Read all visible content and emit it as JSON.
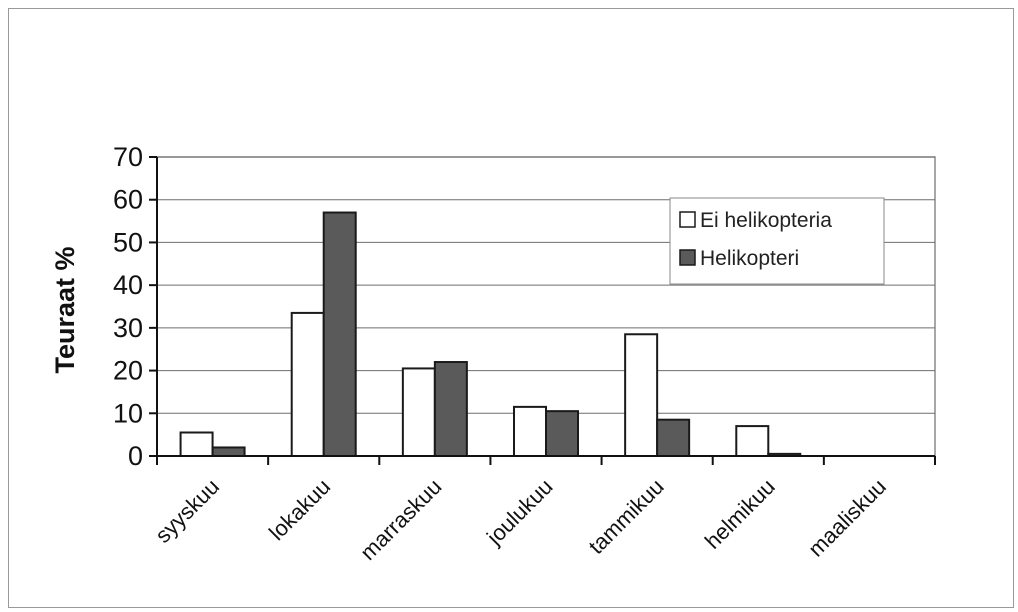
{
  "chart_data": {
    "type": "bar",
    "title": "",
    "xlabel": "",
    "ylabel": "Teuraat %",
    "ylim": [
      0,
      70
    ],
    "yticks": [
      0,
      10,
      20,
      30,
      40,
      50,
      60,
      70
    ],
    "grid": true,
    "legend_position": "top-right",
    "categories": [
      "syyskuu",
      "lokakuu",
      "marraskuu",
      "joulukuu",
      "tammikuu",
      "helmikuu",
      "maaliskuu"
    ],
    "series": [
      {
        "name": "Ei helikopteria",
        "color": "#ffffff",
        "values": [
          5.5,
          33.5,
          20.5,
          11.5,
          28.5,
          7,
          0
        ]
      },
      {
        "name": "Helikopteri",
        "color": "#5a5a5a",
        "values": [
          2,
          57,
          22,
          10.5,
          8.5,
          0.5,
          0
        ]
      }
    ]
  }
}
